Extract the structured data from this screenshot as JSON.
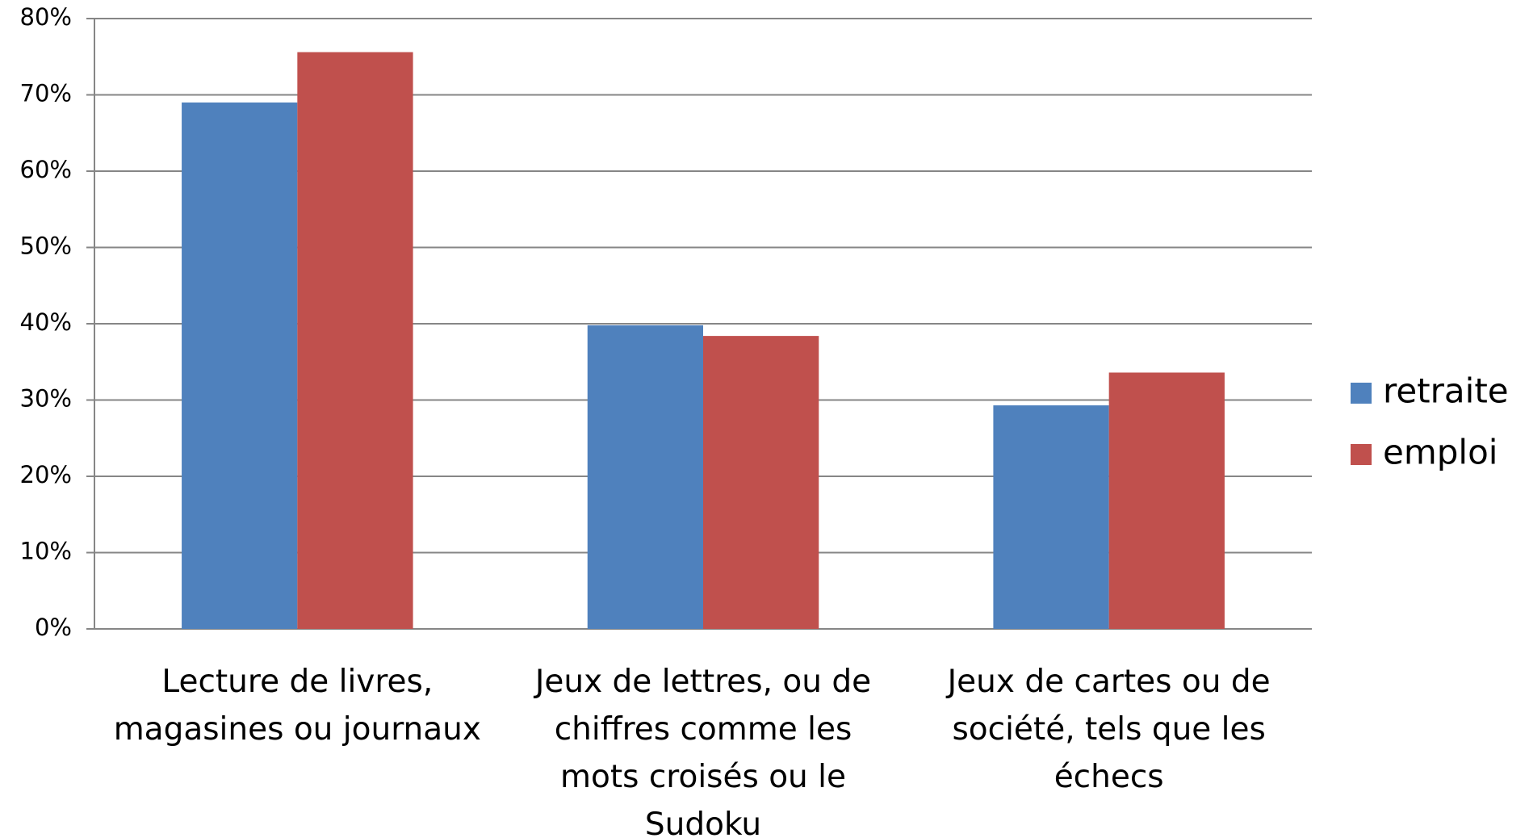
{
  "chart_data": {
    "type": "bar",
    "categories": [
      "Lecture de livres, magasines ou journaux",
      "Jeux de lettres, ou de chiffres comme les mots croisés ou le Sudoku",
      "Jeux de cartes ou de société, tels que les échecs"
    ],
    "series": [
      {
        "name": "retraite",
        "color": "#4f81bd",
        "values": [
          69,
          39.8,
          29.3
        ]
      },
      {
        "name": "emploi",
        "color": "#c0504d",
        "values": [
          75.6,
          38.4,
          33.6
        ]
      }
    ],
    "ylim": [
      0,
      80
    ],
    "yticks": [
      {
        "value": 0,
        "label": "0%"
      },
      {
        "value": 10,
        "label": "10%"
      },
      {
        "value": 20,
        "label": "20%"
      },
      {
        "value": 30,
        "label": "30%"
      },
      {
        "value": 40,
        "label": "40%"
      },
      {
        "value": 50,
        "label": "50%"
      },
      {
        "value": 60,
        "label": "60%"
      },
      {
        "value": 70,
        "label": "70%"
      },
      {
        "value": 80,
        "label": "80%"
      }
    ],
    "grid": true,
    "legend": "right"
  }
}
